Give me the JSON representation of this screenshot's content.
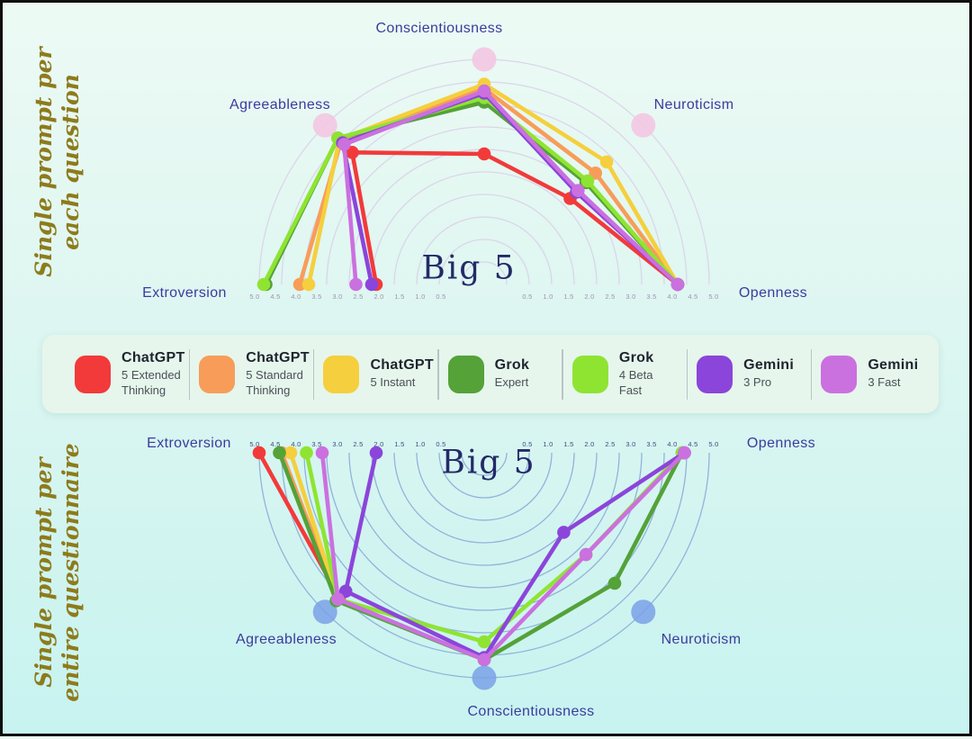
{
  "chart_data": [
    {
      "type": "radar",
      "layout": "semicircle-up",
      "side_title": [
        "Single prompt per",
        "each question"
      ],
      "center_label": "Big 5",
      "axes": [
        "Extroversion",
        "Agreeableness",
        "Conscientiousness",
        "Neuroticism",
        "Openness"
      ],
      "scale": {
        "min": 0,
        "max": 5.0,
        "ring_step": 0.5,
        "rings": 10,
        "tick_labels": [
          "5.0",
          "4.5",
          "4.0",
          "3.5",
          "3.0",
          "2.5",
          "2.0",
          "1.5",
          "1.0",
          "0.5"
        ]
      },
      "style": {
        "ring_color": "#dcd5ea",
        "tick_color": "#9a94af",
        "marker_color": "#f3c7e2",
        "marker_opacity": 0.9,
        "marker_axes": [
          1,
          2,
          3
        ]
      },
      "series": [
        {
          "name": "ChatGPT 5 Extended Thinking",
          "color": "#f23a3a",
          "values": [
            2.4,
            4.15,
            2.9,
            2.7,
            4.3
          ]
        },
        {
          "name": "ChatGPT 5 Standard Thinking",
          "color": "#f79d59",
          "values": [
            4.1,
            4.5,
            4.35,
            3.5,
            4.3
          ]
        },
        {
          "name": "ChatGPT 5 Instant",
          "color": "#f5cf3d",
          "values": [
            3.9,
            4.55,
            4.45,
            3.85,
            4.3
          ]
        },
        {
          "name": "Grok Expert",
          "color": "#54a238",
          "values": [
            4.85,
            4.6,
            4.05,
            3.2,
            4.3
          ]
        },
        {
          "name": "Grok 4 Beta Fast",
          "color": "#8fe432",
          "values": [
            4.9,
            4.6,
            4.15,
            3.25,
            4.3
          ]
        },
        {
          "name": "Gemini 3 Pro",
          "color": "#8b45da",
          "values": [
            2.5,
            4.45,
            4.25,
            2.9,
            4.3
          ]
        },
        {
          "name": "Gemini 3 Fast",
          "color": "#cb70df",
          "values": [
            2.85,
            4.4,
            4.3,
            2.95,
            4.3
          ]
        }
      ]
    },
    {
      "type": "radar",
      "layout": "semicircle-down",
      "side_title": [
        "Single prompt per",
        "entire questionnaire"
      ],
      "center_label": "Big 5",
      "axes": [
        "Extroversion",
        "Agreeableness",
        "Conscientiousness",
        "Neuroticism",
        "Openness"
      ],
      "scale": {
        "min": 0,
        "max": 5.0,
        "ring_step": 0.5,
        "rings": 10,
        "tick_labels": [
          "5.0",
          "4.5",
          "4.0",
          "3.5",
          "3.0",
          "2.5",
          "2.0",
          "1.5",
          "1.0",
          "0.5"
        ]
      },
      "style": {
        "ring_color": "#92b3db",
        "tick_color": "#3d4d7d",
        "marker_color": "#7aa1e6",
        "marker_opacity": 0.85,
        "marker_axes": [
          1,
          2,
          3
        ]
      },
      "series": [
        {
          "name": "ChatGPT 5 Extended Thinking",
          "color": "#f23a3a",
          "values": [
            5.0,
            4.55,
            null,
            null,
            null
          ]
        },
        {
          "name": "ChatGPT 5 Standard Thinking",
          "color": "#f79d59",
          "values": [
            4.5,
            4.6,
            null,
            null,
            null
          ]
        },
        {
          "name": "ChatGPT 5 Instant",
          "color": "#f5cf3d",
          "values": [
            4.3,
            4.6,
            null,
            null,
            null
          ]
        },
        {
          "name": "Grok Expert",
          "color": "#54a238",
          "values": [
            4.55,
            4.65,
            4.6,
            4.1,
            4.4
          ]
        },
        {
          "name": "Grok 4 Beta Fast",
          "color": "#8fe432",
          "values": [
            3.95,
            4.6,
            4.2,
            3.2,
            4.4
          ]
        },
        {
          "name": "Gemini 3 Pro",
          "color": "#8b45da",
          "values": [
            2.4,
            4.35,
            4.55,
            2.5,
            4.45
          ]
        },
        {
          "name": "Gemini 3 Fast",
          "color": "#cb70df",
          "values": [
            3.6,
            4.6,
            4.6,
            3.2,
            4.45
          ]
        }
      ]
    }
  ],
  "legend": {
    "items": [
      {
        "brand": "ChatGPT",
        "variant": "5 Extended Thinking",
        "color": "#f23a3a"
      },
      {
        "brand": "ChatGPT",
        "variant": "5 Standard Thinking",
        "color": "#f79d59"
      },
      {
        "brand": "ChatGPT",
        "variant": "5 Instant",
        "color": "#f5cf3d"
      },
      {
        "brand": "Grok",
        "variant": "Expert",
        "color": "#54a238"
      },
      {
        "brand": "Grok",
        "variant": "4 Beta Fast",
        "color": "#8fe432"
      },
      {
        "brand": "Gemini",
        "variant": "3 Pro",
        "color": "#8b45da"
      },
      {
        "brand": "Gemini",
        "variant": "3 Fast",
        "color": "#cb70df"
      }
    ]
  }
}
